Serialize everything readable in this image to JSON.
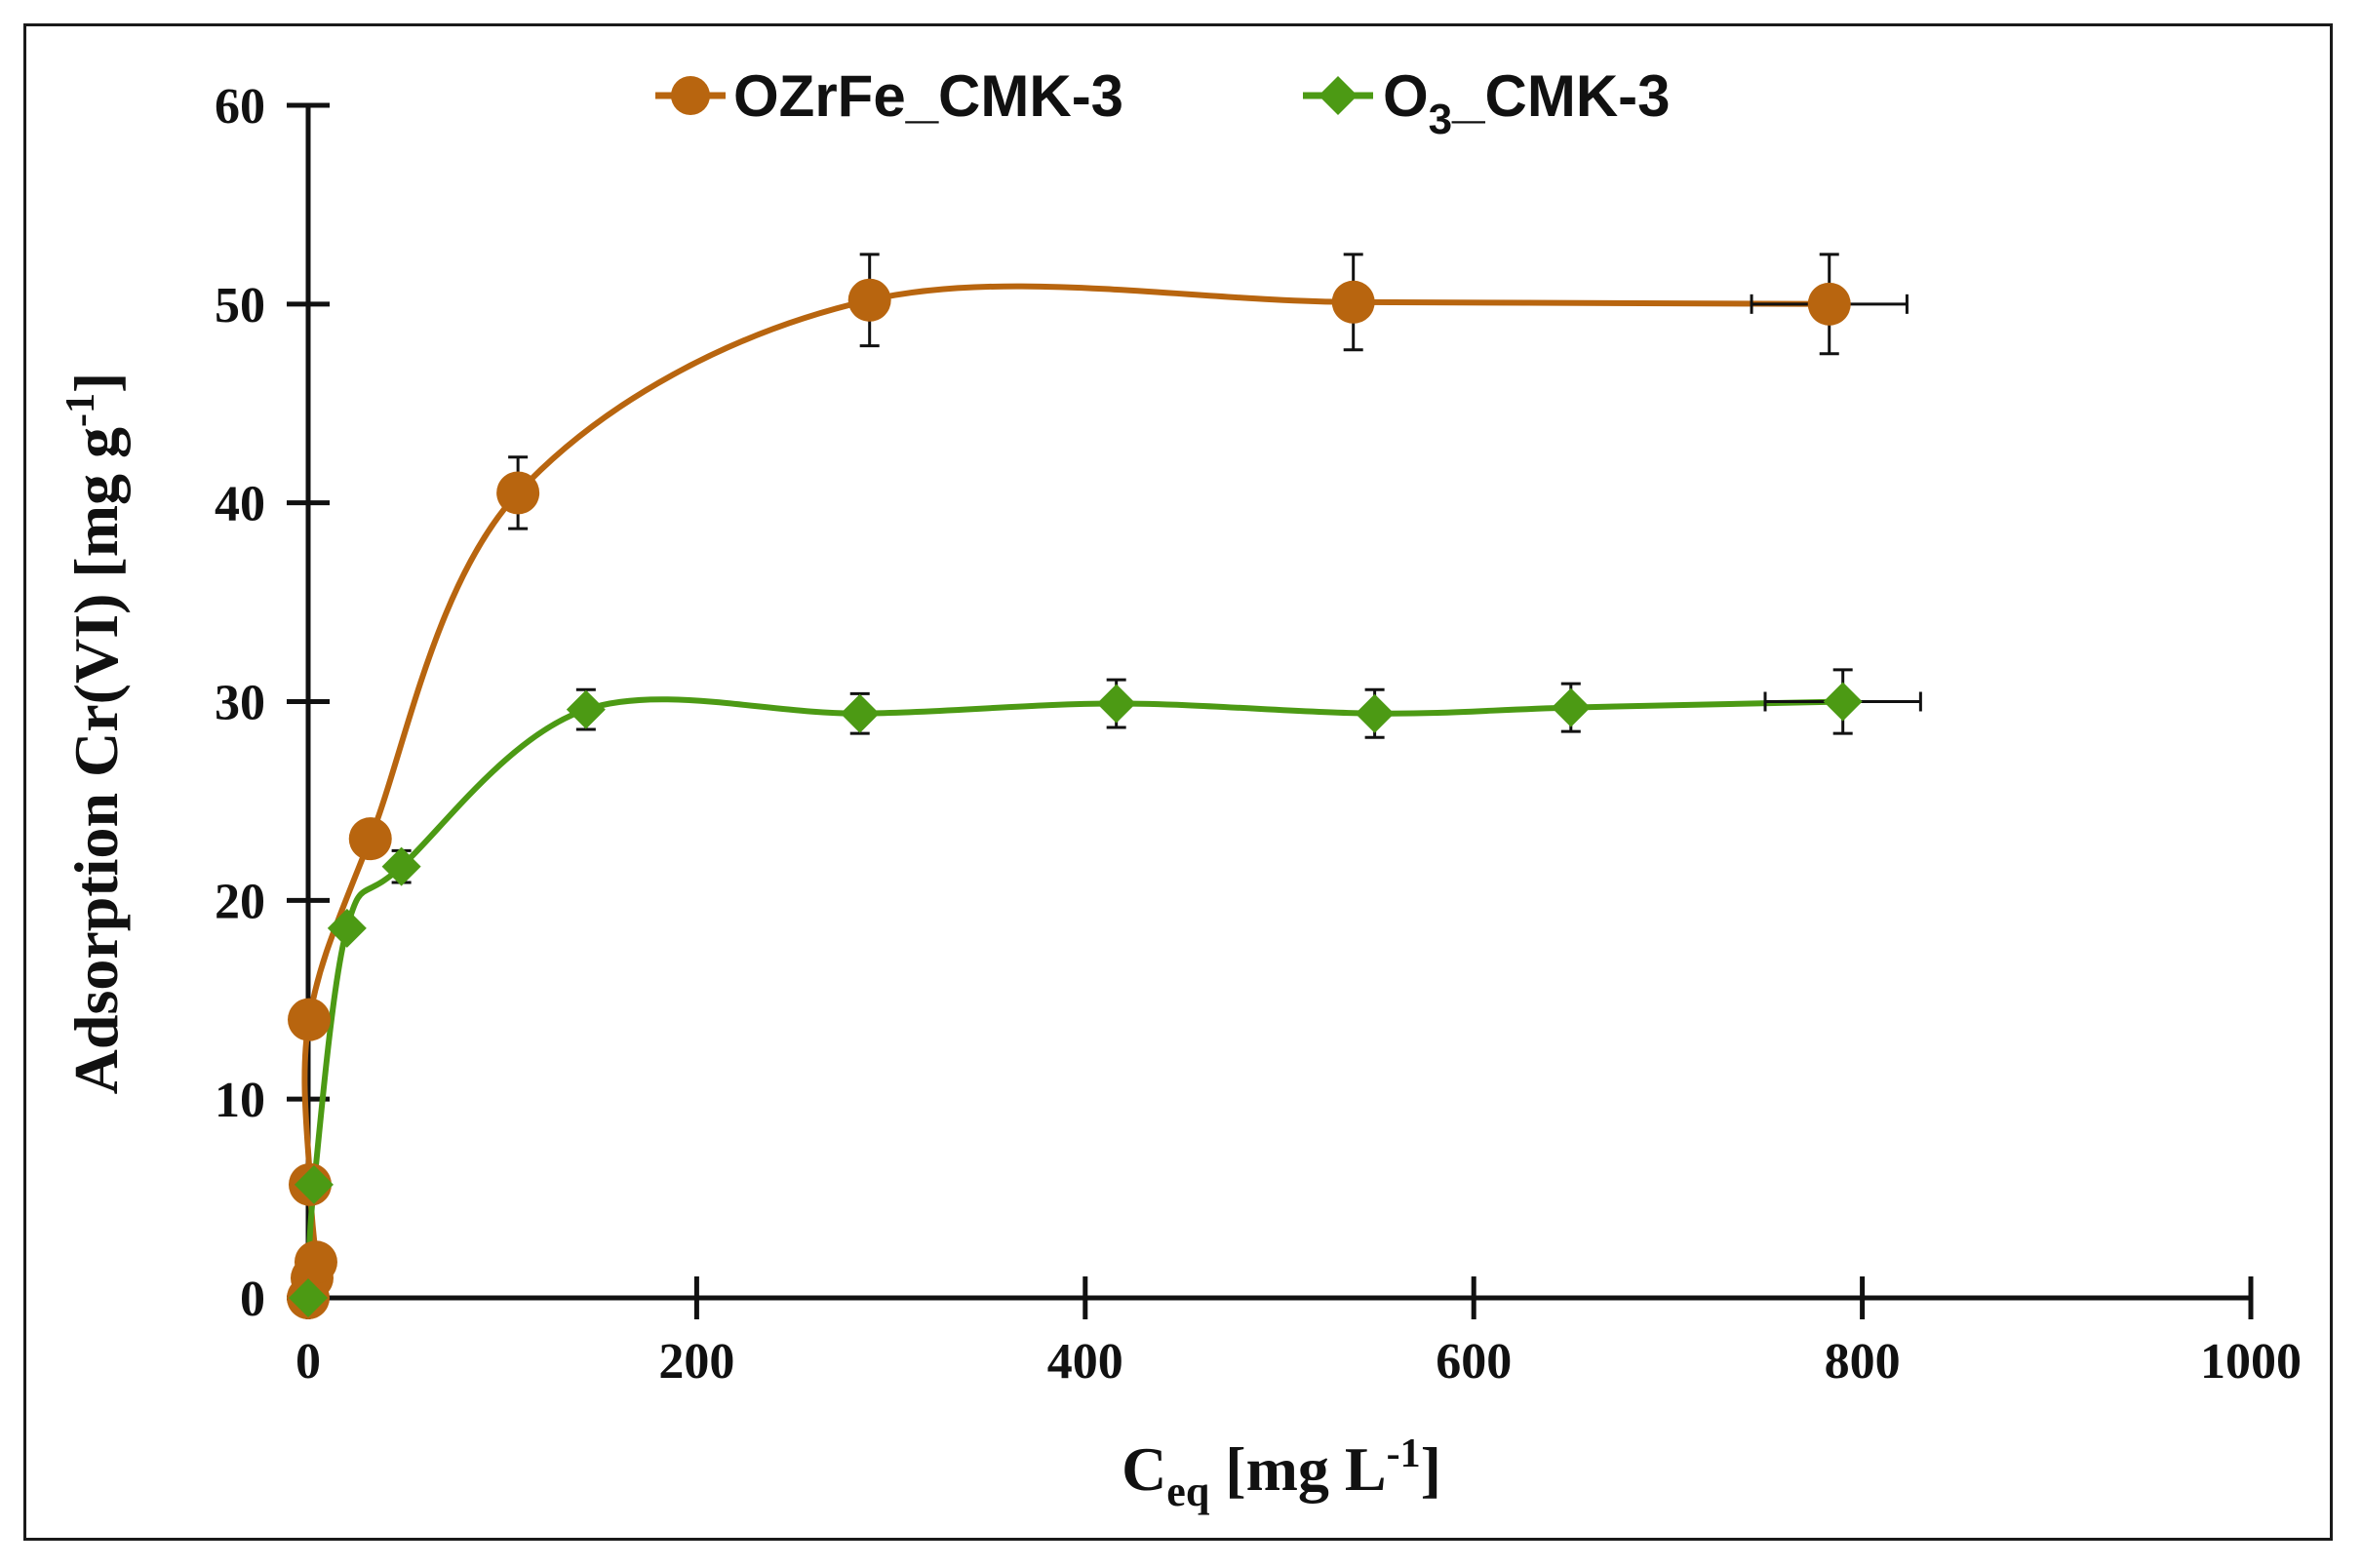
{
  "chart_data": {
    "type": "scatter",
    "title": "",
    "xlabel": {
      "base": "C",
      "sub": "eq",
      "text": " [mg L",
      "sup": "-1",
      "tail": "]"
    },
    "ylabel": {
      "text": "Adsorption  Cr(VI) [mg g",
      "sup": "-1",
      "tail": "]"
    },
    "xlim": [
      0,
      1000
    ],
    "ylim": [
      0,
      60
    ],
    "xticks": [
      0,
      200,
      400,
      600,
      800,
      1000
    ],
    "yticks": [
      0,
      10,
      20,
      30,
      40,
      50,
      60
    ],
    "xtick_labels": [
      "0",
      "200",
      "400",
      "600",
      "800",
      "1000"
    ],
    "ytick_labels": [
      "0",
      "10",
      "20",
      "30",
      "40",
      "50",
      "60"
    ],
    "grid": false,
    "legend_position": "top-center",
    "series": [
      {
        "name": "OZrFe_CMK-3",
        "legend_label": {
          "text": "OZrFe_CMK-3"
        },
        "color": "#b8650f",
        "marker": "circle",
        "line": "smooth",
        "x": [
          0,
          2,
          4,
          1,
          0.5,
          32,
          108,
          289,
          538,
          783
        ],
        "y": [
          0,
          1,
          1.8,
          5.7,
          14,
          23.1,
          40.5,
          50.2,
          50.1,
          50
        ],
        "y_err": [
          0,
          0,
          0,
          0,
          0,
          0,
          1.8,
          2.3,
          2.4,
          2.5
        ],
        "x_err": [
          0,
          0,
          0,
          0,
          0,
          0,
          0,
          0,
          0,
          40
        ]
      },
      {
        "name": "O3_CMK-3",
        "legend_label": {
          "text": "O",
          "sub": "3",
          "tail": "_CMK-3"
        },
        "color": "#4c9a14",
        "marker": "diamond",
        "line": "smooth",
        "x": [
          0,
          3,
          20,
          48,
          143,
          284,
          416,
          549,
          650,
          790
        ],
        "y": [
          0,
          5.7,
          18.6,
          21.7,
          29.6,
          29.4,
          29.9,
          29.4,
          29.7,
          30
        ],
        "y_err": [
          0,
          0,
          0,
          0.8,
          1,
          1,
          1.2,
          1.2,
          1.2,
          1.6
        ],
        "x_err": [
          0,
          0,
          0,
          0,
          0,
          0,
          0,
          0,
          0,
          40
        ]
      }
    ]
  }
}
